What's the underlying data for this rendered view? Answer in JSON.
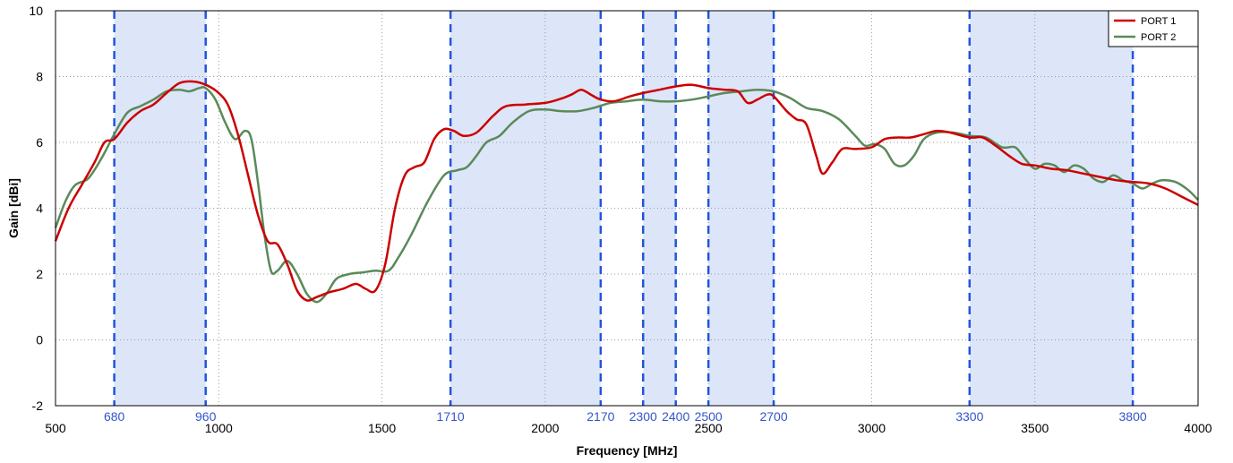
{
  "chart_data": {
    "type": "line",
    "xlabel": "Frequency [MHz]",
    "ylabel": "Gain [dBi]",
    "xlim": [
      500,
      4000
    ],
    "ylim": [
      -2,
      10
    ],
    "x_ticks": [
      "500",
      "1000",
      "1500",
      "2000",
      "2500",
      "3000",
      "3500",
      "4000"
    ],
    "y_ticks": [
      "-2",
      "0",
      "2",
      "4",
      "6",
      "8",
      "10"
    ],
    "x_tick_values": [
      500,
      1000,
      1500,
      2000,
      2500,
      3000,
      3500,
      4000
    ],
    "y_tick_values": [
      -2,
      0,
      2,
      4,
      6,
      8,
      10
    ],
    "grid": true,
    "legend_position": "top-right",
    "band_color": "#dde6f8",
    "band_edge_color": "#2255dd",
    "bands": [
      {
        "start": 680,
        "end": 960
      },
      {
        "start": 1710,
        "end": 2170
      },
      {
        "start": 2300,
        "end": 2400
      },
      {
        "start": 2500,
        "end": 2700
      },
      {
        "start": 3300,
        "end": 3800
      }
    ],
    "band_edge_labels": [
      {
        "value": 680,
        "label": "680"
      },
      {
        "value": 960,
        "label": "960"
      },
      {
        "value": 1710,
        "label": "1710"
      },
      {
        "value": 2170,
        "label": "2170"
      },
      {
        "value": 2300,
        "label": "2300"
      },
      {
        "value": 2400,
        "label": "2400"
      },
      {
        "value": 2500,
        "label": "2500"
      },
      {
        "value": 2700,
        "label": "2700"
      },
      {
        "value": 3300,
        "label": "3300"
      },
      {
        "value": 3800,
        "label": "3800"
      }
    ],
    "series": [
      {
        "name": "PORT 1",
        "color": "#cc0000",
        "points": [
          [
            500,
            3.0
          ],
          [
            540,
            4.0
          ],
          [
            580,
            4.7
          ],
          [
            620,
            5.4
          ],
          [
            650,
            6.0
          ],
          [
            680,
            6.1
          ],
          [
            720,
            6.6
          ],
          [
            760,
            6.95
          ],
          [
            800,
            7.15
          ],
          [
            840,
            7.5
          ],
          [
            880,
            7.8
          ],
          [
            920,
            7.85
          ],
          [
            960,
            7.75
          ],
          [
            1000,
            7.5
          ],
          [
            1030,
            7.1
          ],
          [
            1060,
            6.2
          ],
          [
            1090,
            5.0
          ],
          [
            1120,
            3.8
          ],
          [
            1150,
            3.0
          ],
          [
            1180,
            2.9
          ],
          [
            1210,
            2.3
          ],
          [
            1240,
            1.5
          ],
          [
            1270,
            1.2
          ],
          [
            1300,
            1.3
          ],
          [
            1340,
            1.45
          ],
          [
            1380,
            1.55
          ],
          [
            1420,
            1.7
          ],
          [
            1450,
            1.55
          ],
          [
            1480,
            1.5
          ],
          [
            1510,
            2.3
          ],
          [
            1540,
            4.0
          ],
          [
            1570,
            5.0
          ],
          [
            1600,
            5.25
          ],
          [
            1630,
            5.4
          ],
          [
            1660,
            6.1
          ],
          [
            1690,
            6.4
          ],
          [
            1720,
            6.35
          ],
          [
            1750,
            6.2
          ],
          [
            1790,
            6.3
          ],
          [
            1840,
            6.8
          ],
          [
            1880,
            7.1
          ],
          [
            1940,
            7.15
          ],
          [
            2000,
            7.2
          ],
          [
            2040,
            7.3
          ],
          [
            2080,
            7.45
          ],
          [
            2110,
            7.6
          ],
          [
            2140,
            7.45
          ],
          [
            2170,
            7.3
          ],
          [
            2210,
            7.25
          ],
          [
            2260,
            7.4
          ],
          [
            2300,
            7.5
          ],
          [
            2350,
            7.6
          ],
          [
            2400,
            7.7
          ],
          [
            2450,
            7.75
          ],
          [
            2500,
            7.65
          ],
          [
            2550,
            7.6
          ],
          [
            2590,
            7.55
          ],
          [
            2620,
            7.2
          ],
          [
            2650,
            7.3
          ],
          [
            2680,
            7.45
          ],
          [
            2700,
            7.4
          ],
          [
            2740,
            6.95
          ],
          [
            2770,
            6.7
          ],
          [
            2800,
            6.55
          ],
          [
            2830,
            5.6
          ],
          [
            2850,
            5.05
          ],
          [
            2880,
            5.4
          ],
          [
            2910,
            5.8
          ],
          [
            2950,
            5.8
          ],
          [
            3000,
            5.85
          ],
          [
            3040,
            6.1
          ],
          [
            3080,
            6.15
          ],
          [
            3120,
            6.15
          ],
          [
            3160,
            6.25
          ],
          [
            3200,
            6.35
          ],
          [
            3240,
            6.3
          ],
          [
            3300,
            6.15
          ],
          [
            3340,
            6.15
          ],
          [
            3380,
            5.9
          ],
          [
            3420,
            5.6
          ],
          [
            3460,
            5.35
          ],
          [
            3500,
            5.3
          ],
          [
            3550,
            5.2
          ],
          [
            3600,
            5.15
          ],
          [
            3650,
            5.05
          ],
          [
            3700,
            4.95
          ],
          [
            3750,
            4.85
          ],
          [
            3800,
            4.8
          ],
          [
            3850,
            4.75
          ],
          [
            3900,
            4.6
          ],
          [
            3950,
            4.35
          ],
          [
            4000,
            4.1
          ]
        ]
      },
      {
        "name": "PORT 2",
        "color": "#5a8a5a",
        "points": [
          [
            500,
            3.4
          ],
          [
            530,
            4.2
          ],
          [
            560,
            4.7
          ],
          [
            600,
            4.9
          ],
          [
            640,
            5.5
          ],
          [
            680,
            6.25
          ],
          [
            720,
            6.9
          ],
          [
            760,
            7.1
          ],
          [
            800,
            7.3
          ],
          [
            840,
            7.55
          ],
          [
            880,
            7.6
          ],
          [
            910,
            7.55
          ],
          [
            940,
            7.65
          ],
          [
            960,
            7.65
          ],
          [
            990,
            7.3
          ],
          [
            1020,
            6.6
          ],
          [
            1050,
            6.1
          ],
          [
            1080,
            6.35
          ],
          [
            1100,
            6.1
          ],
          [
            1120,
            4.8
          ],
          [
            1140,
            3.2
          ],
          [
            1160,
            2.1
          ],
          [
            1180,
            2.1
          ],
          [
            1210,
            2.4
          ],
          [
            1240,
            2.0
          ],
          [
            1270,
            1.4
          ],
          [
            1300,
            1.15
          ],
          [
            1330,
            1.4
          ],
          [
            1360,
            1.85
          ],
          [
            1400,
            2.0
          ],
          [
            1440,
            2.05
          ],
          [
            1480,
            2.1
          ],
          [
            1520,
            2.1
          ],
          [
            1550,
            2.5
          ],
          [
            1590,
            3.2
          ],
          [
            1640,
            4.2
          ],
          [
            1690,
            5.0
          ],
          [
            1730,
            5.15
          ],
          [
            1760,
            5.25
          ],
          [
            1790,
            5.6
          ],
          [
            1820,
            6.0
          ],
          [
            1860,
            6.2
          ],
          [
            1900,
            6.6
          ],
          [
            1950,
            6.95
          ],
          [
            2000,
            7.0
          ],
          [
            2050,
            6.95
          ],
          [
            2100,
            6.95
          ],
          [
            2150,
            7.05
          ],
          [
            2200,
            7.2
          ],
          [
            2250,
            7.25
          ],
          [
            2300,
            7.3
          ],
          [
            2350,
            7.25
          ],
          [
            2400,
            7.25
          ],
          [
            2450,
            7.3
          ],
          [
            2500,
            7.4
          ],
          [
            2550,
            7.5
          ],
          [
            2600,
            7.55
          ],
          [
            2650,
            7.6
          ],
          [
            2700,
            7.55
          ],
          [
            2750,
            7.35
          ],
          [
            2800,
            7.05
          ],
          [
            2850,
            6.95
          ],
          [
            2900,
            6.7
          ],
          [
            2950,
            6.2
          ],
          [
            2980,
            5.9
          ],
          [
            3010,
            5.95
          ],
          [
            3040,
            5.8
          ],
          [
            3070,
            5.35
          ],
          [
            3100,
            5.3
          ],
          [
            3130,
            5.6
          ],
          [
            3160,
            6.1
          ],
          [
            3200,
            6.3
          ],
          [
            3250,
            6.3
          ],
          [
            3300,
            6.2
          ],
          [
            3350,
            6.15
          ],
          [
            3400,
            5.85
          ],
          [
            3440,
            5.85
          ],
          [
            3470,
            5.5
          ],
          [
            3500,
            5.2
          ],
          [
            3530,
            5.35
          ],
          [
            3560,
            5.3
          ],
          [
            3590,
            5.1
          ],
          [
            3620,
            5.3
          ],
          [
            3650,
            5.2
          ],
          [
            3680,
            4.9
          ],
          [
            3710,
            4.8
          ],
          [
            3740,
            5.0
          ],
          [
            3770,
            4.85
          ],
          [
            3800,
            4.75
          ],
          [
            3830,
            4.6
          ],
          [
            3860,
            4.75
          ],
          [
            3890,
            4.85
          ],
          [
            3930,
            4.8
          ],
          [
            3970,
            4.55
          ],
          [
            4000,
            4.25
          ]
        ]
      }
    ]
  }
}
